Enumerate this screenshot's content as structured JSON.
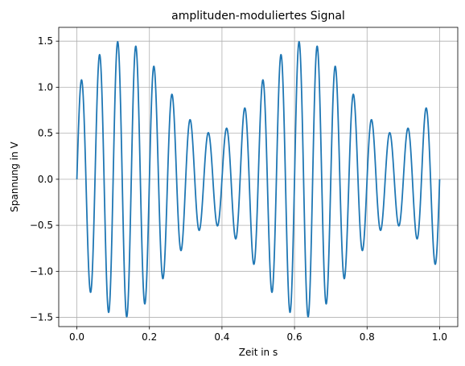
{
  "chart_data": {
    "type": "line",
    "title": "amplituden-moduliertes Signal",
    "xlabel": "Zeit in s",
    "ylabel": "Spannung in V",
    "xlim": [
      -0.05,
      1.05
    ],
    "ylim": [
      -1.6,
      1.65
    ],
    "grid": true,
    "x_ticks": [
      0.0,
      0.2,
      0.4,
      0.6,
      0.8,
      1.0
    ],
    "x_tick_labels": [
      "0.0",
      "0.2",
      "0.4",
      "0.6",
      "0.8",
      "1.0"
    ],
    "y_ticks": [
      -1.5,
      -1.0,
      -0.5,
      0.0,
      0.5,
      1.0,
      1.5
    ],
    "y_tick_labels": [
      "−1.5",
      "−1.0",
      "−0.5",
      "0.0",
      "0.5",
      "1.0",
      "1.5"
    ],
    "series": [
      {
        "color": "#1f77b4",
        "x_range": [
          0.0,
          1.0
        ],
        "carrier_frequency_hz": 20,
        "modulation_frequency_hz": 2,
        "carrier_amplitude_v": 1.0,
        "modulation_depth": 0.5,
        "peak_values": [
          {
            "x": 0.0125,
            "y": 1.08
          },
          {
            "x": 0.0625,
            "y": 1.35
          },
          {
            "x": 0.1125,
            "y": 1.49
          },
          {
            "x": 0.1625,
            "y": 1.45
          },
          {
            "x": 0.2125,
            "y": 1.22
          },
          {
            "x": 0.2625,
            "y": 0.92
          },
          {
            "x": 0.3125,
            "y": 0.65
          },
          {
            "x": 0.3625,
            "y": 0.51
          },
          {
            "x": 0.4125,
            "y": 0.55
          },
          {
            "x": 0.4625,
            "y": 0.78
          },
          {
            "x": 0.5125,
            "y": 1.08
          },
          {
            "x": 0.5625,
            "y": 1.35
          },
          {
            "x": 0.6125,
            "y": 1.49
          },
          {
            "x": 0.6625,
            "y": 1.45
          },
          {
            "x": 0.7125,
            "y": 1.22
          },
          {
            "x": 0.7625,
            "y": 0.92
          },
          {
            "x": 0.8125,
            "y": 0.65
          },
          {
            "x": 0.8625,
            "y": 0.51
          },
          {
            "x": 0.9125,
            "y": 0.55
          },
          {
            "x": 0.9625,
            "y": 0.78
          }
        ]
      }
    ]
  }
}
